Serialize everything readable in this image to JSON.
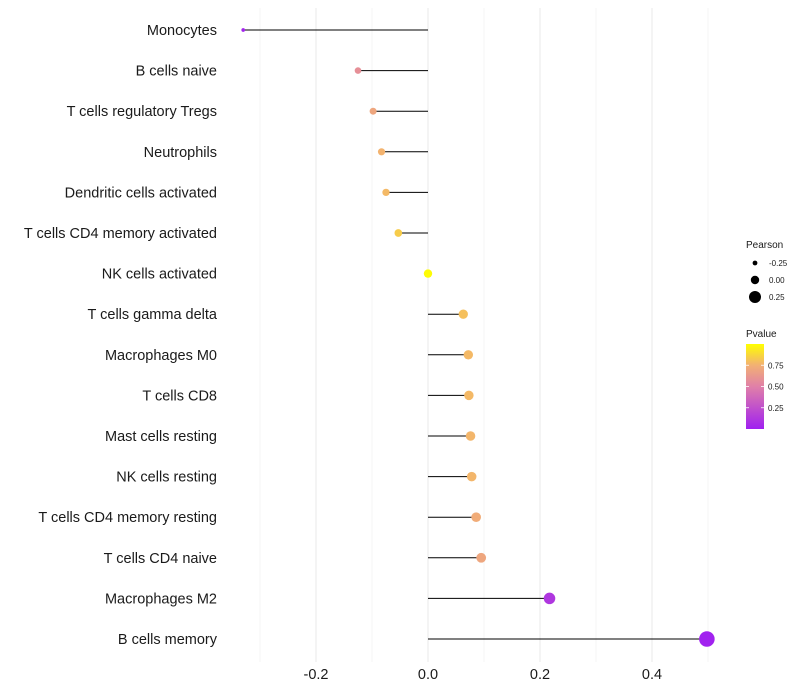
{
  "chart_data": {
    "type": "lollipop",
    "title": "",
    "xlabel": "",
    "ylabel": "",
    "xlim": [
      -0.33,
      0.5
    ],
    "x_ticks": [
      -0.2,
      0.0,
      0.2,
      0.4
    ],
    "x_tick_labels": [
      "-0.2",
      "0.0",
      "0.2",
      "0.4"
    ],
    "grid": true,
    "categories": [
      "Monocytes",
      "B cells naive",
      "T cells regulatory  Tregs",
      "Neutrophils",
      "Dendritic cells activated",
      "T cells CD4 memory activated",
      "NK cells activated",
      "T cells gamma delta",
      "Macrophages M0",
      "T cells CD8",
      "Mast cells resting",
      "NK cells resting",
      "T cells CD4 memory resting",
      "T cells CD4 naive",
      "Macrophages M2",
      "B cells memory"
    ],
    "pearson": [
      -0.33,
      -0.125,
      -0.098,
      -0.083,
      -0.075,
      -0.053,
      0.0,
      0.063,
      0.072,
      0.073,
      0.076,
      0.078,
      0.086,
      0.095,
      0.217,
      0.498
    ],
    "pvalue": [
      0.02,
      0.58,
      0.7,
      0.76,
      0.78,
      0.84,
      0.99,
      0.8,
      0.78,
      0.78,
      0.77,
      0.77,
      0.73,
      0.7,
      0.12,
      0.01
    ],
    "legend_size": {
      "title": "Pearson",
      "values": [
        -0.25,
        0.0,
        0.25
      ],
      "labels": [
        "-0.25",
        "0.00",
        "0.25"
      ]
    },
    "legend_color": {
      "title": "Pvalue",
      "labels": [
        "0.75",
        "0.50",
        "0.25"
      ],
      "values": [
        0.75,
        0.5,
        0.25
      ],
      "low_color": "#a020f0",
      "high_color": "#ffff00"
    },
    "legend_position": "right"
  }
}
